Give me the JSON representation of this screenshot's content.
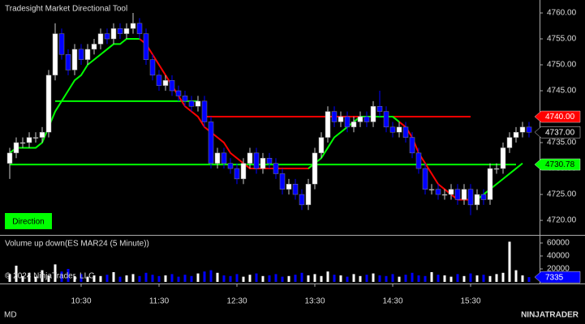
{
  "chart_data": {
    "type": "candlestick",
    "title": "Tradesight Market Directional Tool",
    "categories": [
      null,
      null,
      null,
      null,
      null,
      null,
      null,
      null,
      null,
      null,
      null,
      "10:30",
      null,
      null,
      null,
      null,
      null,
      null,
      null,
      null,
      null,
      null,
      null,
      "11:30",
      null,
      null,
      null,
      null,
      null,
      null,
      null,
      null,
      null,
      null,
      null,
      "12:30",
      null,
      null,
      null,
      null,
      null,
      null,
      null,
      null,
      null,
      null,
      null,
      "13:30",
      null,
      null,
      null,
      null,
      null,
      null,
      null,
      null,
      null,
      null,
      null,
      "14:30",
      null,
      null,
      null,
      null,
      null,
      null,
      null,
      null,
      null,
      null,
      null,
      "15:30",
      null,
      null,
      null,
      null,
      null,
      null,
      null,
      null,
      null
    ],
    "open": [
      4731,
      4733,
      4735,
      4735,
      4736,
      4736,
      4737,
      4748,
      4756,
      4752,
      4749,
      4753,
      4751,
      4753,
      4754,
      4756,
      4755,
      4757,
      4756,
      4757,
      4758,
      4756,
      4751,
      4748,
      4746,
      4747,
      4745,
      4744,
      4743,
      4742,
      4743,
      4739,
      4731,
      4733,
      4731,
      4730,
      4728,
      4731,
      4733,
      4730,
      4732,
      4731,
      4729,
      4726,
      4727,
      4725,
      4723,
      4727,
      4733,
      4736,
      4741,
      4739,
      4740,
      4738,
      4739,
      4740,
      4739,
      4742,
      4741,
      4738,
      4737,
      4738,
      4736,
      4733,
      4730,
      4726,
      4726,
      4725,
      4725,
      4726,
      4724,
      4726,
      4723,
      4725,
      4724,
      4730,
      4730,
      4734,
      4736,
      4737,
      4738
    ],
    "high": [
      4734,
      4736,
      4736,
      4737,
      4737,
      4738,
      4749,
      4758,
      4757,
      4753,
      4754,
      4754,
      4754,
      4755,
      4757,
      4757,
      4758,
      4758,
      4758,
      4760,
      4759,
      4757,
      4752,
      4749,
      4748,
      4748,
      4746,
      4745,
      4744,
      4744,
      4744,
      4740,
      4734,
      4734,
      4732,
      4731,
      4732,
      4734,
      4734,
      4733,
      4733,
      4732,
      4730,
      4728,
      4728,
      4726,
      4728,
      4734,
      4737,
      4742,
      4742,
      4741,
      4741,
      4740,
      4741,
      4741,
      4743,
      4745,
      4742,
      4739,
      4739,
      4739,
      4737,
      4734,
      4731,
      4727,
      4727,
      4726,
      4727,
      4727,
      4727,
      4727,
      4726,
      4726,
      4731,
      4731,
      4735,
      4737,
      4738,
      4739,
      4739
    ],
    "low": [
      4728,
      4732,
      4734,
      4734,
      4735,
      4735,
      4736,
      4747,
      4751,
      4748,
      4748,
      4750,
      4750,
      4752,
      4753,
      4754,
      4754,
      4755,
      4755,
      4756,
      4755,
      4750,
      4747,
      4745,
      4745,
      4744,
      4743,
      4742,
      4741,
      4741,
      4738,
      4730,
      4730,
      4730,
      4729,
      4727,
      4727,
      4730,
      4729,
      4729,
      4730,
      4728,
      4725,
      4725,
      4724,
      4722,
      4722,
      4726,
      4732,
      4735,
      4738,
      4738,
      4737,
      4737,
      4738,
      4738,
      4738,
      4740,
      4737,
      4736,
      4736,
      4735,
      4732,
      4729,
      4725,
      4725,
      4724,
      4724,
      4724,
      4723,
      4723,
      4721,
      4722,
      4723,
      4723,
      4729,
      4729,
      4733,
      4735,
      4736,
      4736
    ],
    "close": [
      4733,
      4735,
      4735,
      4736,
      4736,
      4737,
      4748,
      4756,
      4752,
      4749,
      4753,
      4751,
      4753,
      4754,
      4756,
      4755,
      4757,
      4756,
      4757,
      4758,
      4756,
      4751,
      4748,
      4746,
      4747,
      4745,
      4744,
      4743,
      4742,
      4743,
      4739,
      4731,
      4733,
      4731,
      4730,
      4728,
      4731,
      4733,
      4730,
      4732,
      4731,
      4729,
      4726,
      4727,
      4725,
      4723,
      4727,
      4733,
      4736,
      4741,
      4739,
      4740,
      4738,
      4739,
      4740,
      4739,
      4742,
      4741,
      4738,
      4737,
      4738,
      4736,
      4733,
      4730,
      4726,
      4726,
      4725,
      4725,
      4726,
      4724,
      4726,
      4723,
      4725,
      4724,
      4730,
      4730,
      4734,
      4736,
      4737,
      4738,
      4737
    ],
    "up_color": "#ffffff",
    "down_color": "#0000ff",
    "ylim": [
      4717.2,
      4762.5
    ],
    "yticks": [
      {
        "value": 4720,
        "label": "4720.00"
      },
      {
        "value": 4725,
        "label": "4725.00"
      },
      {
        "value": 4730,
        "label": "4730.00"
      },
      {
        "value": 4735,
        "label": "4735.00"
      },
      {
        "value": 4740,
        "label": "4740.00"
      },
      {
        "value": 4745,
        "label": "4745.00"
      },
      {
        "value": 4750,
        "label": "4750.00"
      },
      {
        "value": 4755,
        "label": "4755.00"
      },
      {
        "value": 4760,
        "label": "4760.00"
      }
    ],
    "lines": [
      {
        "color": "#00ff00",
        "values": [
          4730.78,
          4730.78,
          4730.78,
          4730.78,
          4730.78,
          4730.78,
          4730.78,
          4730.78,
          4730.78,
          4730.78,
          4730.78,
          4730.78,
          4730.78,
          4730.78,
          4730.78,
          4730.78,
          4730.78,
          4730.78,
          4730.78,
          4730.78,
          4730.78,
          4730.78,
          4730.78,
          4730.78,
          4730.78,
          4730.78,
          4730.78,
          4730.78,
          4730.78,
          4730.78,
          4730.78,
          4730.78,
          4730.78,
          4730.78,
          4730.78,
          4730.78,
          4730.78,
          4730.78,
          4730.78,
          4730.78,
          4730.78,
          4730.78,
          4730.78,
          4730.78,
          4730.78,
          4730.78,
          4730.78,
          4730.78,
          4730.78,
          4730.78,
          4730.78,
          4730.78,
          4730.78,
          4730.78,
          4730.78,
          4730.78,
          4730.78,
          4730.78,
          4730.78,
          4730.78,
          4730.78,
          4730.78,
          4730.78,
          4730.78,
          4730.78,
          4730.78,
          4730.78,
          4730.78,
          4730.78,
          4730.78,
          4730.78,
          4730.78,
          4730.78,
          4730.78,
          4730.78,
          4730.78,
          4730.78,
          4730.78,
          4730.78,
          null,
          null
        ]
      },
      {
        "color": "#00ff00",
        "values": [
          null,
          null,
          null,
          null,
          null,
          null,
          null,
          4743,
          4743,
          4743,
          4743,
          4743,
          4743,
          4743,
          4743,
          4743,
          4743,
          4743,
          4743,
          4743,
          4743,
          4743,
          4743,
          4743,
          4743,
          4743,
          4743,
          4743,
          4743,
          4743,
          null,
          null,
          null,
          null,
          null,
          null,
          null,
          null,
          null,
          null,
          null,
          null,
          null,
          null,
          null,
          null,
          null,
          null,
          null,
          null,
          null,
          null,
          null,
          null,
          null,
          null,
          null,
          null,
          null,
          null,
          null,
          null,
          null,
          null,
          null,
          null,
          null,
          null,
          null,
          null,
          null,
          null,
          null,
          null,
          null,
          null,
          null,
          null,
          null,
          null,
          null
        ]
      },
      {
        "color": "#ff0000",
        "values": [
          null,
          null,
          null,
          null,
          null,
          null,
          null,
          null,
          null,
          null,
          null,
          null,
          null,
          null,
          null,
          null,
          null,
          null,
          null,
          null,
          null,
          null,
          null,
          null,
          null,
          null,
          null,
          null,
          null,
          null,
          4740,
          4740,
          4740,
          4740,
          4740,
          4740,
          4740,
          4740,
          4740,
          4740,
          4740,
          4740,
          4740,
          4740,
          4740,
          4740,
          4740,
          4740,
          4740,
          4740,
          4740,
          4740,
          4740,
          4740,
          4740,
          4740,
          4740,
          4740,
          4740,
          4740,
          4740,
          4740,
          4740,
          4740,
          4740,
          4740,
          4740,
          4740,
          4740,
          4740,
          4740,
          4740,
          null,
          null,
          null,
          null,
          null,
          null,
          null,
          null,
          null
        ]
      },
      {
        "color": "#ff0000",
        "values": [
          null,
          null,
          null,
          null,
          null,
          null,
          null,
          null,
          null,
          null,
          null,
          null,
          null,
          null,
          null,
          null,
          null,
          null,
          null,
          null,
          4755,
          4754,
          4752,
          4750,
          4748,
          4746,
          4744,
          4742,
          4741,
          4740,
          4738,
          4737,
          4736,
          4735,
          4733,
          4732,
          4731,
          4730,
          4730,
          4730,
          4730,
          4730,
          4730,
          4730,
          4730,
          4730,
          4730,
          4731,
          null,
          null,
          null,
          null,
          null,
          null,
          null,
          null,
          null,
          null,
          null,
          null,
          4739,
          4738,
          4736,
          4733,
          4731,
          4729,
          4727,
          4726,
          4725,
          4724,
          4724,
          4724,
          null,
          null,
          null,
          null,
          null,
          null,
          null,
          null,
          null
        ]
      },
      {
        "color": "#00ff00",
        "values": [
          4733,
          4734,
          4734,
          4734,
          4734,
          4735,
          4738,
          4741,
          4743,
          4745,
          4747,
          4748,
          4750,
          4751,
          4752,
          4753,
          4754,
          4754,
          4755,
          4755,
          4755,
          null,
          null,
          null,
          null,
          null,
          null,
          null,
          null,
          null,
          null,
          null,
          null,
          null,
          null,
          null,
          null,
          null,
          null,
          null,
          null,
          null,
          null,
          null,
          null,
          null,
          4730,
          4731,
          4732,
          4734,
          4736,
          4737,
          4738,
          4739,
          4740,
          4740,
          4740,
          4740,
          4740,
          4740,
          4739,
          null,
          null,
          null,
          null,
          null,
          null,
          null,
          null,
          null,
          null,
          null,
          4724,
          4725,
          4726,
          4727,
          4728,
          4729,
          4730,
          4731,
          null
        ]
      }
    ],
    "price_markers": [
      {
        "value": 4740,
        "label": "4740.00",
        "color": "#ff0000",
        "text_color": "#ffffff"
      },
      {
        "value": 4737,
        "label": "4737.00",
        "color": "#000000",
        "text_color": "#ffffff"
      },
      {
        "value": 4730.78,
        "label": "4730.78",
        "color": "#00ff00",
        "text_color": "#000000"
      }
    ],
    "direction_label": "Direction",
    "direction_color": "#00ff00",
    "volume": {
      "title": "Volume up down(ES MAR24 (5 Minute))",
      "values": [
        12000,
        25000,
        9000,
        14000,
        8000,
        18000,
        10000,
        27000,
        16000,
        20000,
        9000,
        12000,
        8000,
        10000,
        9000,
        11000,
        15000,
        8000,
        10000,
        12000,
        9000,
        14000,
        11000,
        9000,
        10000,
        12000,
        8000,
        11000,
        9000,
        13000,
        16000,
        18000,
        14000,
        10000,
        9000,
        12000,
        8000,
        11000,
        13000,
        9000,
        10000,
        12000,
        8000,
        9000,
        11000,
        14000,
        10000,
        12000,
        9000,
        16000,
        11000,
        10000,
        8000,
        12000,
        9000,
        11000,
        13000,
        10000,
        9000,
        12000,
        8000,
        11000,
        14000,
        10000,
        9000,
        15000,
        11000,
        10000,
        8000,
        12000,
        9000,
        13000,
        10000,
        11000,
        9000,
        12000,
        14000,
        62000,
        18000,
        10000,
        7335
      ],
      "ylim": [
        0,
        65000
      ],
      "yticks": [
        20000,
        40000,
        60000
      ],
      "marker_color": "#0000ff"
    },
    "copyright": "© 2024 NinjaTrader, LLC",
    "footer": "MD",
    "brand": "NINJATRADER",
    "brand_color": "#e8401c"
  }
}
